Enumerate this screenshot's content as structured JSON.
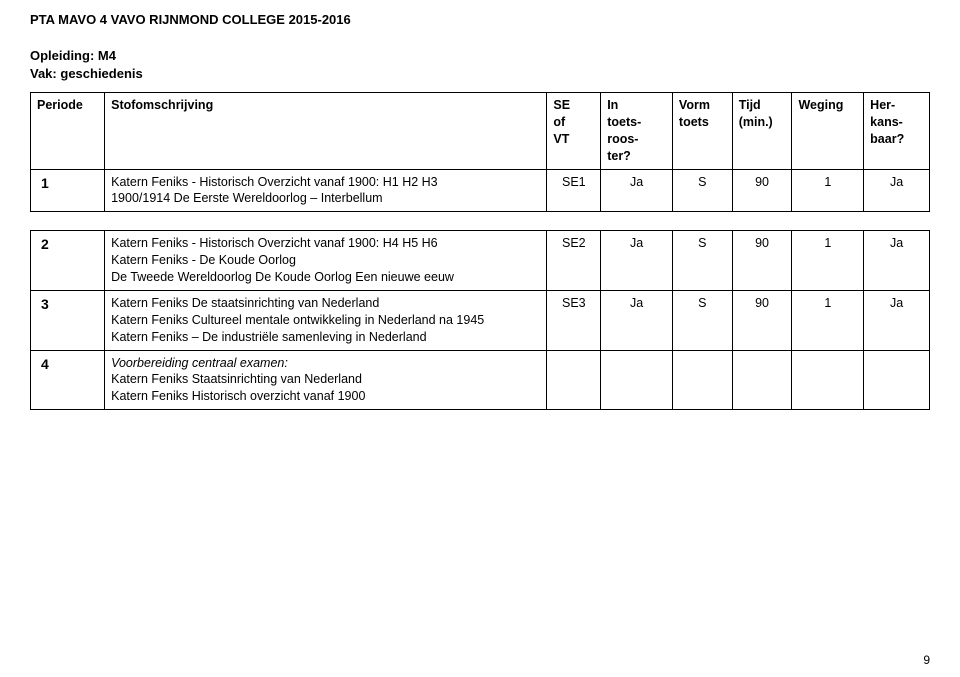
{
  "header": {
    "title": "PTA MAVO 4 VAVO RIJNMOND COLLEGE 2015-2016"
  },
  "meta": {
    "opleiding_label": "Opleiding:",
    "opleiding_value": "M4",
    "vak_label": "Vak:",
    "vak_value": "geschiedenis"
  },
  "columns": {
    "periode": "Periode",
    "stof": "Stofomschrijving",
    "se": "SE\nof\nVT",
    "rooster": "In\ntoets-\nroos-\nter?",
    "vorm": "Vorm\ntoets",
    "tijd": "Tijd\n(min.)",
    "weging": "Weging",
    "herk": "Her-\nkans-\nbaar?"
  },
  "rows": [
    {
      "periode": "1",
      "stof": "Katern Feniks - Historisch Overzicht vanaf 1900: H1 H2 H3\n1900/1914 De Eerste Wereldoorlog – Interbellum",
      "se": "SE1",
      "rooster": "Ja",
      "vorm": "S",
      "tijd": "90",
      "weging": "1",
      "herk": "Ja"
    },
    {
      "periode": "2",
      "stof": "Katern Feniks - Historisch Overzicht vanaf 1900: H4 H5 H6\nKatern Feniks - De Koude Oorlog\nDe Tweede Wereldoorlog De Koude Oorlog Een nieuwe eeuw",
      "se": "SE2",
      "rooster": "Ja",
      "vorm": "S",
      "tijd": "90",
      "weging": "1",
      "herk": "Ja"
    },
    {
      "periode": "3",
      "stof": "Katern Feniks De staatsinrichting van Nederland\nKatern Feniks Cultureel mentale ontwikkeling in Nederland na 1945\nKatern Feniks – De industriële samenleving in Nederland",
      "se": "SE3",
      "rooster": "Ja",
      "vorm": "S",
      "tijd": "90",
      "weging": "1",
      "herk": "Ja"
    }
  ],
  "row4": {
    "periode": "4",
    "italic_line": "Voorbereiding centraal examen:",
    "line2": "Katern Feniks Staatsinrichting van Nederland",
    "line3": "Katern Feniks Historisch overzicht vanaf 1900"
  },
  "page_number": "9"
}
